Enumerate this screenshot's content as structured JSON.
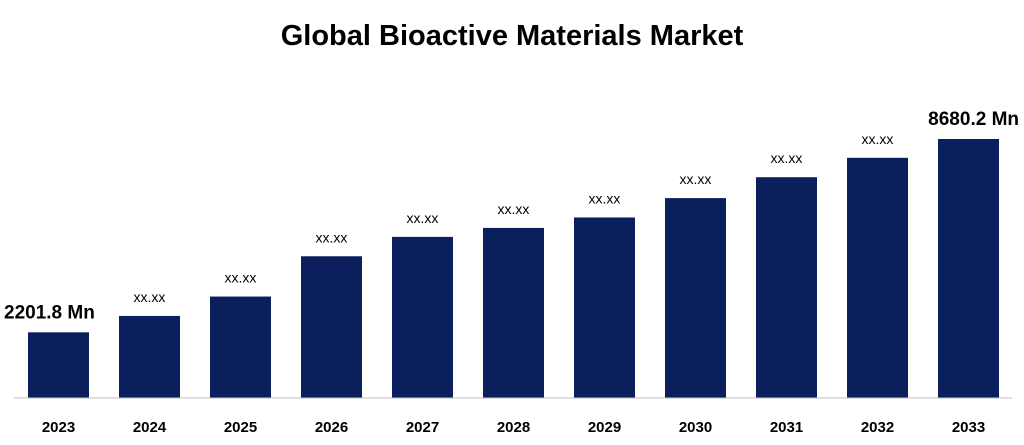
{
  "chart_data": {
    "type": "bar",
    "title": "Global Bioactive Materials Market",
    "categories": [
      "2023",
      "2024",
      "2025",
      "2026",
      "2027",
      "2028",
      "2029",
      "2030",
      "2031",
      "2032",
      "2033"
    ],
    "values": [
      2201.8,
      2750,
      3400,
      4750,
      5400,
      5700,
      6050,
      6700,
      7400,
      8050,
      8680.2
    ],
    "data_labels": [
      "2201.8 Mn",
      "xx.xx",
      "xx.xx",
      "xx.xx",
      "xx.xx",
      "xx.xx",
      "xx.xx",
      "xx.xx",
      "xx.xx",
      "xx.xx",
      "8680.2 Mn"
    ],
    "xlabel": "",
    "ylabel": "",
    "ylim": [
      0,
      8680.2
    ],
    "grid": false,
    "legend": "none",
    "bar_color": "#0b1f5c",
    "axis_color": "#bfbfbf"
  }
}
